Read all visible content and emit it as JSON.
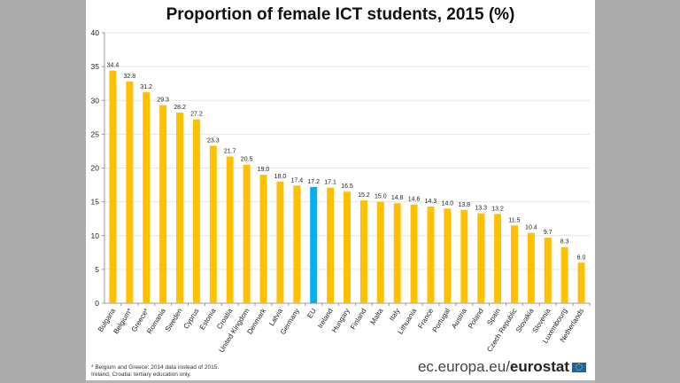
{
  "page": {
    "background": "#ababab"
  },
  "footnote": {
    "lines": [
      "*  Belgium and Greece: 2014 data instead of 2015.",
      "   Ireland, Croatia: tertiary education only."
    ]
  },
  "brand": {
    "prefix": "ec.europa.eu/",
    "bold": "eurostat",
    "flag_icon": "eu-flag-icon"
  },
  "chart_data": {
    "type": "bar",
    "title": "Proportion of female ICT students, 2015 (%)",
    "xlabel": "",
    "ylabel": "",
    "ylim": [
      0,
      40
    ],
    "yticks": [
      0,
      5,
      10,
      15,
      20,
      25,
      30,
      35,
      40
    ],
    "grid": true,
    "legend": "none",
    "colors": {
      "default": "#ffc000",
      "highlight": "#00b0f0"
    },
    "highlight_category": "EU",
    "categories": [
      "Bulgaria",
      "Belgium*",
      "Greece*",
      "Romania",
      "Sweden",
      "Cyprus",
      "Estonia",
      "Croatia",
      "United Kingdom",
      "Denmark",
      "Latvia",
      "Germany",
      "EU",
      "Ireland",
      "Hungary",
      "Finland",
      "Malta",
      "Italy",
      "Lithuania",
      "France",
      "Portugal",
      "Austria",
      "Poland",
      "Spain",
      "Czech Republic",
      "Slovakia",
      "Slovenia",
      "Luxembourg",
      "Netherlands"
    ],
    "values": [
      34.4,
      32.8,
      31.2,
      29.3,
      28.2,
      27.2,
      23.3,
      21.7,
      20.5,
      19.0,
      18.0,
      17.4,
      17.2,
      17.1,
      16.5,
      15.2,
      15.0,
      14.8,
      14.6,
      14.3,
      14.0,
      13.8,
      13.3,
      13.2,
      11.5,
      10.4,
      9.7,
      8.3,
      6.0
    ],
    "value_labels": [
      "34.4",
      "32.8",
      "31.2",
      "29.3",
      "28.2",
      "27.2",
      "23.3",
      "21.7",
      "20.5",
      "19.0",
      "18.0",
      "17.4",
      "17.2",
      "17.1",
      "16.5",
      "15.2",
      "15.0",
      "14.8",
      "14.6",
      "14.3",
      "14.0",
      "13.8",
      "13.3",
      "13.2",
      "11.5",
      "10.4",
      "9.7",
      "8.3",
      "6.0"
    ]
  }
}
